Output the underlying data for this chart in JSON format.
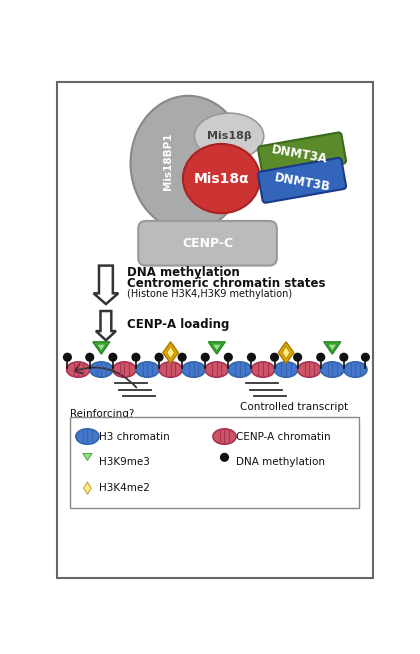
{
  "bg_color": "#ffffff",
  "border_color": "#666666",
  "figure_size": [
    4.2,
    6.54
  ],
  "dpi": 100,
  "colors": {
    "gray_large": "#aaaaaa",
    "mis18b_gray": "#cccccc",
    "mis18a_red": "#cc3333",
    "dnmt3a_green": "#5a8a2a",
    "dnmt3b_blue": "#3366bb",
    "gray_cenpc": "#bbbbbb",
    "h3_blue": "#4477cc",
    "cenpa_pink": "#cc5566",
    "h3k9me3_green": "#44aa33",
    "h3k4me2_yellow": "#ddaa00",
    "dna_meth_black": "#111111",
    "line_color": "#333333",
    "text_dark": "#111111"
  },
  "arrow1_text_line1": "DNA methylation",
  "arrow1_text_line2": "Centromeric chromatin states",
  "arrow1_text_line3": "(Histone H3K4,H3K9 methylation)",
  "arrow2_text": "CENP-A loading",
  "controlled_text": "Controlled transcript",
  "reinforcing_text": "Reinforcing?"
}
